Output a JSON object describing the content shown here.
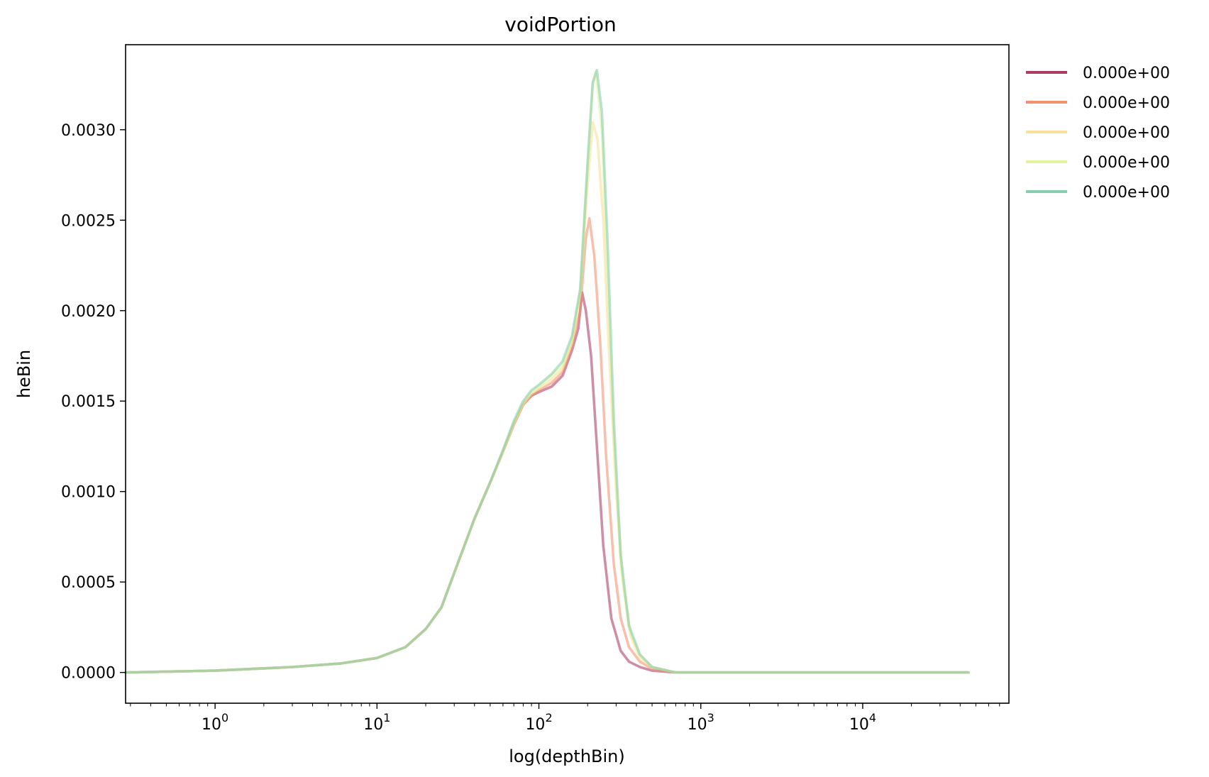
{
  "chart_data": {
    "type": "line",
    "title": "voidPortion",
    "xlabel": "log(depthBin)",
    "ylabel": "heBin",
    "xscale": "log",
    "xlim": [
      0.28,
      80000
    ],
    "ylim": [
      -0.00017,
      0.00347
    ],
    "grid": false,
    "legend_position": "outside-right-top",
    "x_ticks": [
      {
        "value": 1,
        "base": "10",
        "exp": "0"
      },
      {
        "value": 10,
        "base": "10",
        "exp": "1"
      },
      {
        "value": 100,
        "base": "10",
        "exp": "2"
      },
      {
        "value": 1000,
        "base": "10",
        "exp": "3"
      },
      {
        "value": 10000,
        "base": "10",
        "exp": "4"
      }
    ],
    "y_ticks": [
      {
        "value": 0,
        "label": "0.0000"
      },
      {
        "value": 0.0005,
        "label": "0.0005"
      },
      {
        "value": 0.001,
        "label": "0.0010"
      },
      {
        "value": 0.0015,
        "label": "0.0015"
      },
      {
        "value": 0.002,
        "label": "0.0020"
      },
      {
        "value": 0.0025,
        "label": "0.0025"
      },
      {
        "value": 0.003,
        "label": "0.0030"
      }
    ],
    "series": [
      {
        "name": "0.000e+00",
        "color": "#a8325e",
        "x": [
          0.28,
          1,
          3,
          6,
          10,
          15,
          20,
          25,
          30,
          40,
          50,
          60,
          70,
          80,
          90,
          100,
          120,
          140,
          160,
          175,
          185,
          195,
          210,
          230,
          250,
          280,
          320,
          360,
          420,
          500,
          700,
          1000,
          3000,
          10000,
          45000
        ],
        "y": [
          0.0,
          1e-05,
          3e-05,
          5e-05,
          8e-05,
          0.00014,
          0.00024,
          0.00036,
          0.00055,
          0.00085,
          0.00105,
          0.00122,
          0.00137,
          0.00148,
          0.00153,
          0.00155,
          0.00158,
          0.00164,
          0.00178,
          0.0019,
          0.0021,
          0.002,
          0.00175,
          0.0012,
          0.0007,
          0.0003,
          0.00012,
          6e-05,
          3e-05,
          1e-05,
          0.0,
          0.0,
          0.0,
          0.0,
          0.0
        ]
      },
      {
        "name": "0.000e+00",
        "color": "#f08a68",
        "x": [
          0.28,
          1,
          3,
          6,
          10,
          15,
          20,
          25,
          30,
          40,
          50,
          60,
          70,
          80,
          90,
          100,
          120,
          140,
          160,
          180,
          195,
          205,
          220,
          240,
          260,
          290,
          320,
          360,
          420,
          500,
          700,
          1000,
          3000,
          10000,
          45000
        ],
        "y": [
          0.0,
          1e-05,
          3e-05,
          5e-05,
          8e-05,
          0.00014,
          0.00024,
          0.00036,
          0.00055,
          0.00085,
          0.00105,
          0.00122,
          0.00137,
          0.00148,
          0.00153,
          0.00156,
          0.0016,
          0.00166,
          0.0018,
          0.002,
          0.0024,
          0.00251,
          0.0023,
          0.0018,
          0.0012,
          0.0006,
          0.0003,
          0.00014,
          6e-05,
          2e-05,
          0.0,
          0.0,
          0.0,
          0.0,
          0.0
        ]
      },
      {
        "name": "0.000e+00",
        "color": "#f6df93",
        "x": [
          0.28,
          1,
          3,
          6,
          10,
          15,
          20,
          25,
          30,
          40,
          50,
          60,
          70,
          80,
          90,
          100,
          120,
          140,
          160,
          180,
          200,
          215,
          230,
          250,
          270,
          300,
          330,
          370,
          420,
          500,
          700,
          1000,
          3000,
          10000,
          45000
        ],
        "y": [
          0.0,
          1e-05,
          3e-05,
          5e-05,
          8e-05,
          0.00014,
          0.00024,
          0.00036,
          0.00055,
          0.00085,
          0.00105,
          0.00122,
          0.00137,
          0.00148,
          0.00154,
          0.00157,
          0.00162,
          0.00168,
          0.00182,
          0.0021,
          0.0027,
          0.00304,
          0.00295,
          0.0025,
          0.0018,
          0.001,
          0.0005,
          0.0002,
          8e-05,
          3e-05,
          0.0,
          0.0,
          0.0,
          0.0,
          0.0
        ]
      },
      {
        "name": "0.000e+00",
        "color": "#dff29a",
        "x": [
          0.28,
          1,
          3,
          6,
          10,
          15,
          20,
          25,
          30,
          40,
          50,
          60,
          70,
          80,
          90,
          100,
          120,
          140,
          160,
          180,
          200,
          215,
          225,
          245,
          265,
          290,
          320,
          360,
          420,
          500,
          700,
          1000,
          3000,
          10000,
          45000
        ],
        "y": [
          0.0,
          1e-05,
          3e-05,
          5e-05,
          8e-05,
          0.00014,
          0.00024,
          0.00036,
          0.00055,
          0.00085,
          0.00105,
          0.00122,
          0.00138,
          0.00149,
          0.00155,
          0.00158,
          0.00164,
          0.0017,
          0.00184,
          0.0021,
          0.0028,
          0.00325,
          0.00332,
          0.003,
          0.0022,
          0.0013,
          0.0006,
          0.00024,
          0.0001,
          3e-05,
          0.0,
          0.0,
          0.0,
          0.0,
          0.0
        ]
      },
      {
        "name": "0.000e+00",
        "color": "#7fcbaa",
        "x": [
          0.28,
          1,
          3,
          6,
          10,
          15,
          20,
          25,
          30,
          40,
          50,
          60,
          70,
          80,
          90,
          100,
          120,
          140,
          160,
          180,
          200,
          215,
          228,
          245,
          265,
          290,
          320,
          360,
          420,
          500,
          700,
          1000,
          3000,
          10000,
          45000
        ],
        "y": [
          0.0,
          1e-05,
          3e-05,
          5e-05,
          8e-05,
          0.00014,
          0.00024,
          0.00036,
          0.00055,
          0.00085,
          0.00105,
          0.00123,
          0.00139,
          0.0015,
          0.00156,
          0.00159,
          0.00165,
          0.00172,
          0.00186,
          0.00212,
          0.00282,
          0.00326,
          0.00333,
          0.0031,
          0.0024,
          0.0014,
          0.00065,
          0.00026,
          0.0001,
          3e-05,
          0.0,
          0.0,
          0.0,
          0.0,
          0.0
        ]
      }
    ]
  }
}
